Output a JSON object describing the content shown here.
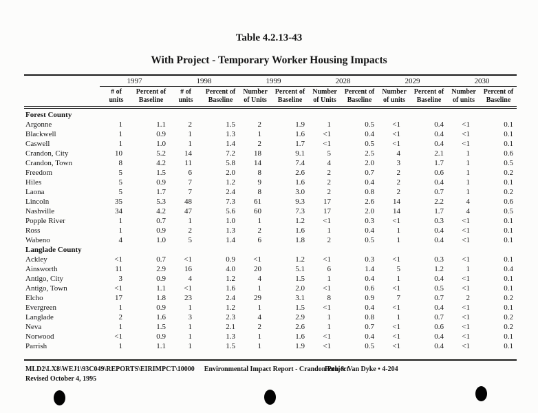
{
  "colors": {
    "paper": "#fcfcfb",
    "ink": "#151515"
  },
  "page": {
    "title": "Table 4.2.13-43",
    "subtitle": "With Project - Temporary Worker Housing Impacts"
  },
  "table": {
    "year_groups": [
      {
        "year": "1997",
        "units_label": [
          "# of",
          "units"
        ],
        "pct_label": [
          "Percent of",
          "Baseline"
        ]
      },
      {
        "year": "1998",
        "units_label": [
          "# of",
          "units"
        ],
        "pct_label": [
          "Percent of",
          "Baseline"
        ]
      },
      {
        "year": "1999",
        "units_label": [
          "Number",
          "of Units"
        ],
        "pct_label": [
          "Percent of",
          "Baseline"
        ]
      },
      {
        "year": "2028",
        "units_label": [
          "Number",
          "of Units"
        ],
        "pct_label": [
          "Percent of",
          "Baseline"
        ]
      },
      {
        "year": "2029",
        "units_label": [
          "Number",
          "of units"
        ],
        "pct_label": [
          "Percent of",
          "Baseline"
        ]
      },
      {
        "year": "2030",
        "units_label": [
          "Number",
          "of units"
        ],
        "pct_label": [
          "Percent of",
          "Baseline"
        ]
      }
    ],
    "sections": [
      {
        "name": "Forest County",
        "rows": [
          {
            "label": "Argonne",
            "values": [
              "1",
              "1.1",
              "2",
              "1.5",
              "2",
              "1.9",
              "1",
              "0.5",
              "<1",
              "0.4",
              "<1",
              "0.1"
            ]
          },
          {
            "label": "Blackwell",
            "values": [
              "1",
              "0.9",
              "1",
              "1.3",
              "1",
              "1.6",
              "<1",
              "0.4",
              "<1",
              "0.4",
              "<1",
              "0.1"
            ]
          },
          {
            "label": "Caswell",
            "values": [
              "1",
              "1.0",
              "1",
              "1.4",
              "2",
              "1.7",
              "<1",
              "0.5",
              "<1",
              "0.4",
              "<1",
              "0.1"
            ]
          },
          {
            "label": "Crandon, City",
            "values": [
              "10",
              "5.2",
              "14",
              "7.2",
              "18",
              "9.1",
              "5",
              "2.5",
              "4",
              "2.1",
              "1",
              "0.6"
            ]
          },
          {
            "label": "Crandon, Town",
            "values": [
              "8",
              "4.2",
              "11",
              "5.8",
              "14",
              "7.4",
              "4",
              "2.0",
              "3",
              "1.7",
              "1",
              "0.5"
            ]
          },
          {
            "label": "Freedom",
            "values": [
              "5",
              "1.5",
              "6",
              "2.0",
              "8",
              "2.6",
              "2",
              "0.7",
              "2",
              "0.6",
              "1",
              "0.2"
            ]
          },
          {
            "label": "Hiles",
            "values": [
              "5",
              "0.9",
              "7",
              "1.2",
              "9",
              "1.6",
              "2",
              "0.4",
              "2",
              "0.4",
              "1",
              "0.1"
            ]
          },
          {
            "label": "Laona",
            "values": [
              "5",
              "1.7",
              "7",
              "2.4",
              "8",
              "3.0",
              "2",
              "0.8",
              "2",
              "0.7",
              "1",
              "0.2"
            ]
          },
          {
            "label": "Lincoln",
            "values": [
              "35",
              "5.3",
              "48",
              "7.3",
              "61",
              "9.3",
              "17",
              "2.6",
              "14",
              "2.2",
              "4",
              "0.6"
            ]
          },
          {
            "label": "Nashville",
            "values": [
              "34",
              "4.2",
              "47",
              "5.6",
              "60",
              "7.3",
              "17",
              "2.0",
              "14",
              "1.7",
              "4",
              "0.5"
            ]
          },
          {
            "label": "Popple River",
            "values": [
              "1",
              "0.7",
              "1",
              "1.0",
              "1",
              "1.2",
              "<1",
              "0.3",
              "<1",
              "0.3",
              "<1",
              "0.1"
            ]
          },
          {
            "label": "Ross",
            "values": [
              "1",
              "0.9",
              "2",
              "1.3",
              "2",
              "1.6",
              "1",
              "0.4",
              "1",
              "0.4",
              "<1",
              "0.1"
            ]
          },
          {
            "label": "Wabeno",
            "values": [
              "4",
              "1.0",
              "5",
              "1.4",
              "6",
              "1.8",
              "2",
              "0.5",
              "1",
              "0.4",
              "<1",
              "0.1"
            ]
          }
        ]
      },
      {
        "name": "Langlade County",
        "rows": [
          {
            "label": "Ackley",
            "values": [
              "<1",
              "0.7",
              "<1",
              "0.9",
              "<1",
              "1.2",
              "<1",
              "0.3",
              "<1",
              "0.3",
              "<1",
              "0.1"
            ]
          },
          {
            "label": "Ainsworth",
            "values": [
              "11",
              "2.9",
              "16",
              "4.0",
              "20",
              "5.1",
              "6",
              "1.4",
              "5",
              "1.2",
              "1",
              "0.4"
            ]
          },
          {
            "label": "Antigo, City",
            "values": [
              "3",
              "0.9",
              "4",
              "1.2",
              "4",
              "1.5",
              "1",
              "0.4",
              "1",
              "0.4",
              "<1",
              "0.1"
            ]
          },
          {
            "label": "Antigo, Town",
            "values": [
              "<1",
              "1.1",
              "<1",
              "1.6",
              "1",
              "2.0",
              "<1",
              "0.6",
              "<1",
              "0.5",
              "<1",
              "0.1"
            ]
          },
          {
            "label": "Elcho",
            "values": [
              "17",
              "1.8",
              "23",
              "2.4",
              "29",
              "3.1",
              "8",
              "0.9",
              "7",
              "0.7",
              "2",
              "0.2"
            ]
          },
          {
            "label": "Evergreen",
            "values": [
              "1",
              "0.9",
              "1",
              "1.2",
              "1",
              "1.5",
              "<1",
              "0.4",
              "<1",
              "0.4",
              "<1",
              "0.1"
            ]
          },
          {
            "label": "Langlade",
            "values": [
              "2",
              "1.6",
              "3",
              "2.3",
              "4",
              "2.9",
              "1",
              "0.8",
              "1",
              "0.7",
              "<1",
              "0.2"
            ]
          },
          {
            "label": "Neva",
            "values": [
              "1",
              "1.5",
              "1",
              "2.1",
              "2",
              "2.6",
              "1",
              "0.7",
              "<1",
              "0.6",
              "<1",
              "0.2"
            ]
          },
          {
            "label": "Norwood",
            "values": [
              "<1",
              "0.9",
              "1",
              "1.3",
              "1",
              "1.6",
              "<1",
              "0.4",
              "<1",
              "0.4",
              "<1",
              "0.1"
            ]
          },
          {
            "label": "Parrish",
            "values": [
              "1",
              "1.1",
              "1",
              "1.5",
              "1",
              "1.9",
              "<1",
              "0.5",
              "<1",
              "0.4",
              "<1",
              "0.1"
            ]
          }
        ]
      }
    ]
  },
  "footer": {
    "document_path": "MLD2\\LX8\\WEJ1\\93C049\\REPORTS\\EIRIMPCT\\10000",
    "report_name": "Environmental Impact Report - Crandon Project",
    "revision": "Revised October 4, 1995",
    "page_reference": "Foth & Van Dyke • 4-204"
  }
}
